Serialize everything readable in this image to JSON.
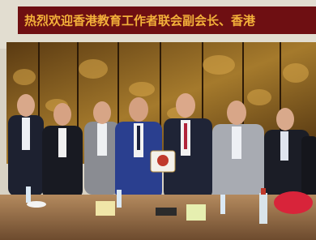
{
  "banner": {
    "text": "热烈欢迎香港教育工作者联会副会长、香港"
  }
}
